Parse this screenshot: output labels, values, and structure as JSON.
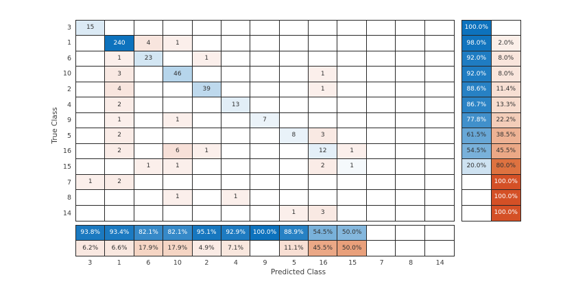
{
  "chart_data": {
    "type": "heatmap",
    "subtype": "confusion_matrix",
    "x_label": "Predicted Class",
    "y_label": "True Class",
    "classes": [
      "3",
      "1",
      "6",
      "10",
      "2",
      "4",
      "9",
      "5",
      "16",
      "15",
      "7",
      "8",
      "14"
    ],
    "matrix": [
      [
        15,
        0,
        0,
        0,
        0,
        0,
        0,
        0,
        0,
        0,
        0,
        0,
        0
      ],
      [
        0,
        240,
        4,
        1,
        0,
        0,
        0,
        0,
        0,
        0,
        0,
        0,
        0
      ],
      [
        0,
        1,
        23,
        0,
        1,
        0,
        0,
        0,
        0,
        0,
        0,
        0,
        0
      ],
      [
        0,
        3,
        0,
        46,
        0,
        0,
        0,
        0,
        1,
        0,
        0,
        0,
        0
      ],
      [
        0,
        4,
        0,
        0,
        39,
        0,
        0,
        0,
        1,
        0,
        0,
        0,
        0
      ],
      [
        0,
        2,
        0,
        0,
        0,
        13,
        0,
        0,
        0,
        0,
        0,
        0,
        0
      ],
      [
        0,
        1,
        0,
        1,
        0,
        0,
        7,
        0,
        0,
        0,
        0,
        0,
        0
      ],
      [
        0,
        2,
        0,
        0,
        0,
        0,
        0,
        8,
        3,
        0,
        0,
        0,
        0
      ],
      [
        0,
        2,
        0,
        6,
        1,
        0,
        0,
        0,
        12,
        1,
        0,
        0,
        0
      ],
      [
        0,
        0,
        1,
        1,
        0,
        0,
        0,
        0,
        2,
        1,
        0,
        0,
        0
      ],
      [
        1,
        2,
        0,
        0,
        0,
        0,
        0,
        0,
        0,
        0,
        0,
        0,
        0
      ],
      [
        0,
        0,
        0,
        1,
        0,
        1,
        0,
        0,
        0,
        0,
        0,
        0,
        0
      ],
      [
        0,
        0,
        0,
        0,
        0,
        0,
        0,
        1,
        3,
        0,
        0,
        0,
        0
      ]
    ],
    "row_summary": [
      [
        "100.0%",
        ""
      ],
      [
        "98.0%",
        "2.0%"
      ],
      [
        "92.0%",
        "8.0%"
      ],
      [
        "92.0%",
        "8.0%"
      ],
      [
        "88.6%",
        "11.4%"
      ],
      [
        "86.7%",
        "13.3%"
      ],
      [
        "77.8%",
        "22.2%"
      ],
      [
        "61.5%",
        "38.5%"
      ],
      [
        "54.5%",
        "45.5%"
      ],
      [
        "20.0%",
        "80.0%"
      ],
      [
        "",
        "100.0%"
      ],
      [
        "",
        "100.0%"
      ],
      [
        "",
        "100.0%"
      ]
    ],
    "col_summary": [
      [
        "93.8%",
        "6.2%"
      ],
      [
        "93.4%",
        "6.6%"
      ],
      [
        "82.1%",
        "17.9%"
      ],
      [
        "82.1%",
        "17.9%"
      ],
      [
        "95.1%",
        "4.9%"
      ],
      [
        "92.9%",
        "7.1%"
      ],
      [
        "100.0%",
        ""
      ],
      [
        "88.9%",
        "11.1%"
      ],
      [
        "54.5%",
        "45.5%"
      ],
      [
        "50.0%",
        "50.0%"
      ],
      [
        "",
        ""
      ],
      [
        "",
        ""
      ],
      [
        "",
        ""
      ]
    ]
  },
  "colors": {
    "diag_blue_max": "#0D72BD",
    "miss_orange_max": "#D45026",
    "grid_line": "#262626",
    "text_dark": "#303030",
    "text_light": "#FFFFFF",
    "axis_text": "#3C3C3C",
    "matrix_cells": [
      [
        "#DBEAF5",
        "",
        "",
        "",
        "",
        "",
        "",
        "",
        "",
        "",
        "",
        "",
        ""
      ],
      [
        "",
        "#0D72BD",
        "#F8E5DE",
        "#FBEFEB",
        "",
        "",
        "",
        "",
        "",
        "",
        "",
        "",
        ""
      ],
      [
        "",
        "#FBEFEB",
        "#D3E6F3",
        "",
        "#FBEFEB",
        "",
        "",
        "",
        "",
        "",
        "",
        "",
        ""
      ],
      [
        "",
        "#F9E9E3",
        "",
        "#B6D5EB",
        "",
        "",
        "",
        "",
        "#FBEFEB",
        "",
        "",
        "",
        ""
      ],
      [
        "",
        "#F8E5DE",
        "",
        "",
        "#BED9ED",
        "",
        "",
        "",
        "#FBEFEB",
        "",
        "",
        "",
        ""
      ],
      [
        "",
        "#FAECE7",
        "",
        "",
        "",
        "#E2EEF7",
        "",
        "",
        "",
        "",
        "",
        "",
        ""
      ],
      [
        "",
        "#FBEFEB",
        "",
        "#FBEFEB",
        "",
        "",
        "#EBF3F9",
        "",
        "",
        "",
        "",
        "",
        ""
      ],
      [
        "",
        "#FAECE7",
        "",
        "",
        "",
        "",
        "",
        "#E9F2F9",
        "#F9E9E3",
        "",
        "",
        "",
        ""
      ],
      [
        "",
        "#FAECE7",
        "",
        "#F7E0D8",
        "#FBEFEB",
        "",
        "",
        "",
        "#E4EFF8",
        "#FBEFEB",
        "",
        "",
        ""
      ],
      [
        "",
        "",
        "#FBEFEB",
        "#FBEFEB",
        "",
        "",
        "",
        "",
        "#FAECE7",
        "#F5F9FC",
        "",
        "",
        ""
      ],
      [
        "#FBEFEB",
        "#FAECE7",
        "",
        "",
        "",
        "",
        "",
        "",
        "",
        "",
        "",
        "",
        ""
      ],
      [
        "",
        "",
        "",
        "#FBEFEB",
        "",
        "#FBEFEB",
        "",
        "",
        "",
        "",
        "",
        "",
        ""
      ],
      [
        "",
        "",
        "",
        "",
        "",
        "",
        "",
        "#FBEFEB",
        "#F9E9E3",
        "",
        "",
        "",
        ""
      ]
    ],
    "row_summary_cells": [
      [
        "#0D72BD",
        ""
      ],
      [
        "#1174BE",
        "#FBEFE9"
      ],
      [
        "#1F7CC2",
        "#F9E5DC"
      ],
      [
        "#1F7CC2",
        "#F9E5DC"
      ],
      [
        "#2781C4",
        "#F7DFD3"
      ],
      [
        "#2B83C5",
        "#F7DCCE"
      ],
      [
        "#4190CB",
        "#F3CDB9"
      ],
      [
        "#68A7D6",
        "#EDB294"
      ],
      [
        "#79B1DA",
        "#EBA886"
      ],
      [
        "#CEE2F1",
        "#DE7240"
      ],
      [
        "",
        "#D45026"
      ],
      [
        "",
        "#D45026"
      ],
      [
        "",
        "#D45026"
      ]
    ],
    "col_summary_cells": [
      [
        "#1B79C0",
        "#F9E8E1"
      ],
      [
        "#1C7AC1",
        "#F9E8E0"
      ],
      [
        "#3689C8",
        "#F5D5C4"
      ],
      [
        "#3689C8",
        "#F5D5C4"
      ],
      [
        "#1777BF",
        "#FAEBE5"
      ],
      [
        "#1E7BC1",
        "#F9E7DE"
      ],
      [
        "#0D72BD",
        ""
      ],
      [
        "#2781C4",
        "#F8DFD4"
      ],
      [
        "#79B1DA",
        "#EBA886"
      ],
      [
        "#84B7DD",
        "#E9A07B"
      ],
      [
        "",
        ""
      ],
      [
        "",
        ""
      ],
      [
        "",
        ""
      ]
    ]
  }
}
